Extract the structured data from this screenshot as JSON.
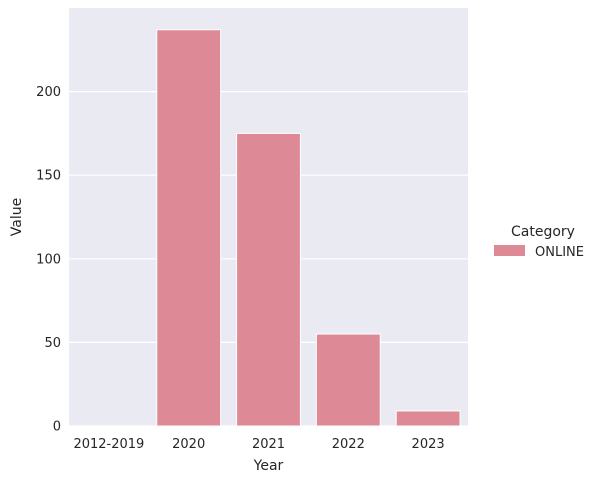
{
  "chart_data": {
    "type": "bar",
    "categories": [
      "2012-2019",
      "2020",
      "2021",
      "2022",
      "2023"
    ],
    "series": [
      {
        "name": "ONLINE",
        "values": [
          0,
          237,
          175,
          55,
          9
        ]
      }
    ],
    "xlabel": "Year",
    "ylabel": "Value",
    "ylim": [
      0,
      250
    ],
    "yticks": [
      0,
      50,
      100,
      150,
      200
    ],
    "grid": true,
    "legend": {
      "title": "Category",
      "placement": "right"
    },
    "colors": {
      "bar": "#dd8a96",
      "plot_bg": "#eaeaf2",
      "grid": "#ffffff"
    }
  }
}
